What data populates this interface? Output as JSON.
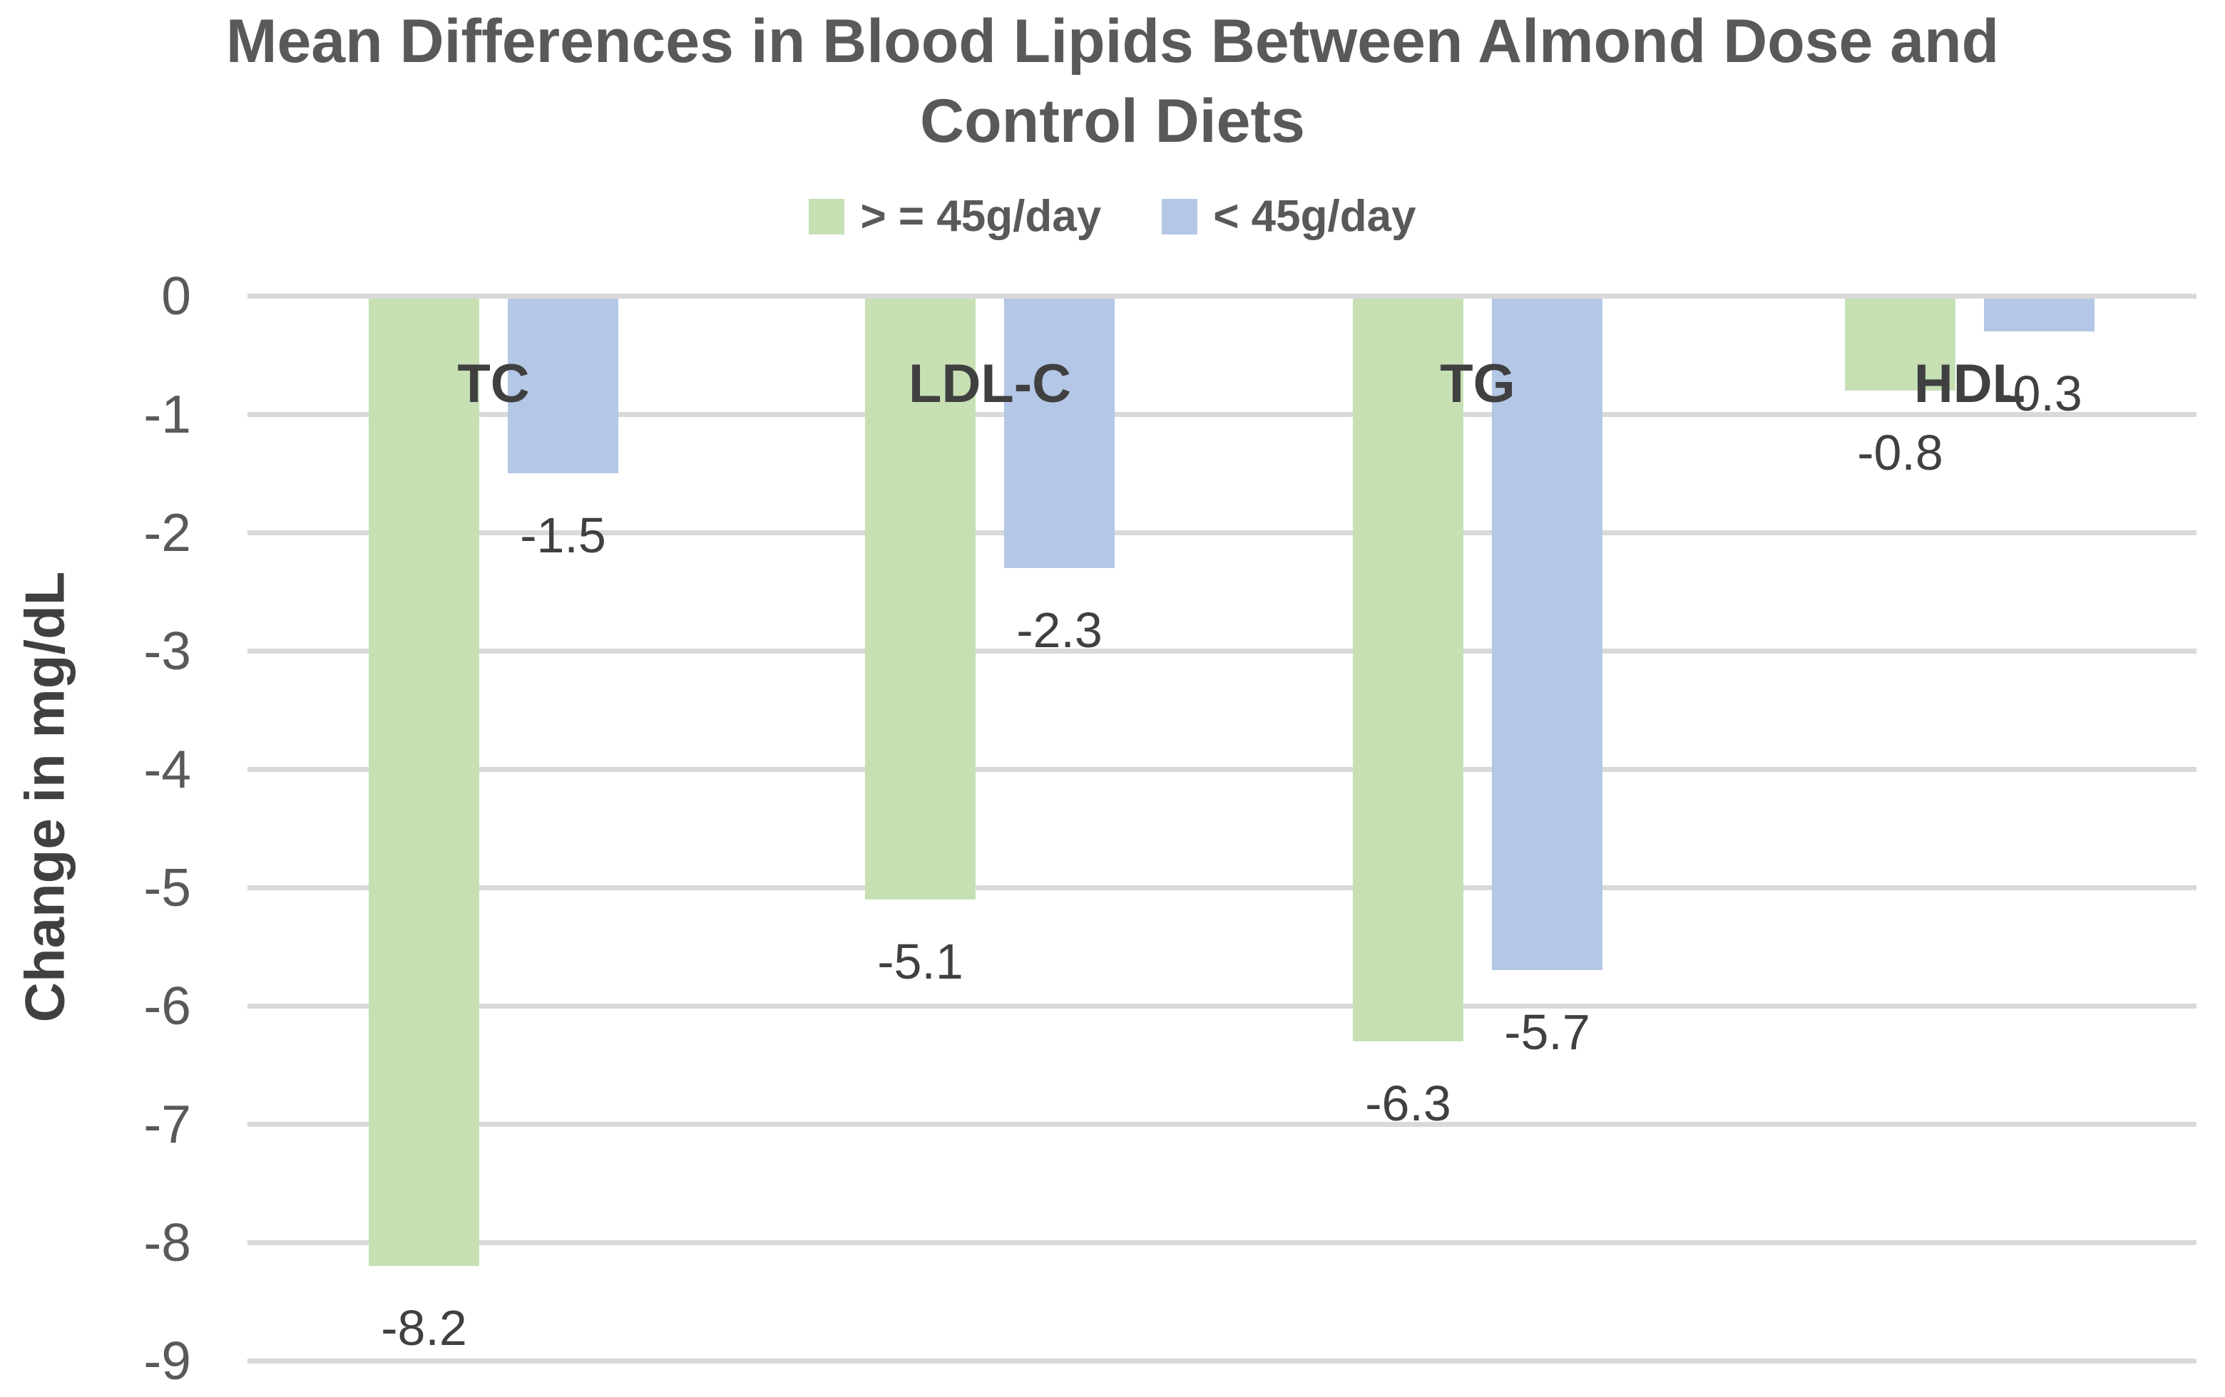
{
  "chart_data": {
    "type": "bar",
    "title": "Mean Differences in Blood Lipids Between Almond Dose and Control Diets",
    "title_lines": [
      "Mean Differences in Blood Lipids Between Almond Dose and",
      "Control Diets"
    ],
    "ylabel": "Change in mg/dL",
    "xlabel": "",
    "categories": [
      "TC",
      "LDL-C",
      "TG",
      "HDL"
    ],
    "series": [
      {
        "name": "> = 45g/day",
        "color": "#c6e0b4",
        "values": [
          -8.2,
          -5.1,
          -6.3,
          -0.8
        ]
      },
      {
        "name": "< 45g/day",
        "color": "#b4c7e7",
        "values": [
          -1.5,
          -2.3,
          -5.7,
          -0.3
        ]
      }
    ],
    "data_labels": {
      "> = 45g/day": [
        "-8.2",
        "-5.1",
        "-6.3",
        "-0.8"
      ],
      "< 45g/day": [
        "-1.5",
        "-2.3",
        "-5.7",
        "-0.3"
      ]
    },
    "y_ticks": [
      0,
      -1,
      -2,
      -3,
      -4,
      -5,
      -6,
      -7,
      -8,
      -9
    ],
    "ylim": [
      -9,
      0
    ],
    "grid": true,
    "legend_position": "top-center",
    "colors": {
      "grid": "#d9d9d9",
      "title_text": "#595959",
      "tick_text": "#595959",
      "label_text": "#404040",
      "background": "#ffffff"
    }
  }
}
